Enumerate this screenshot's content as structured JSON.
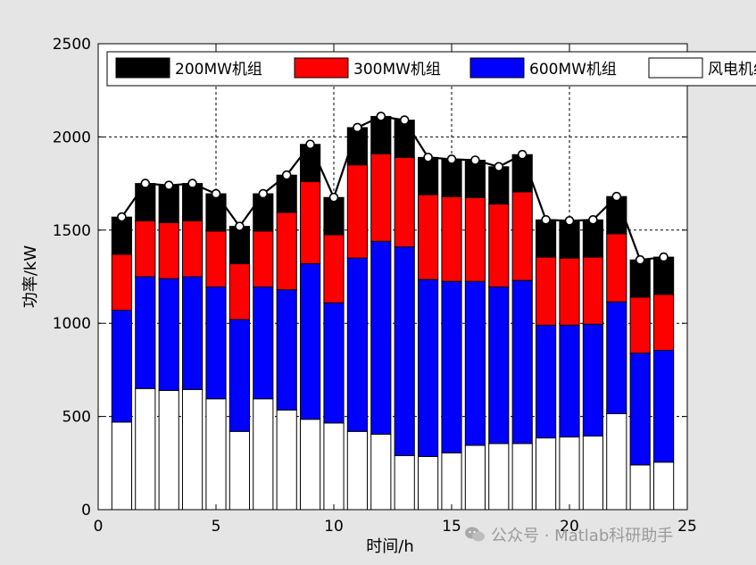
{
  "chart_data": {
    "type": "bar",
    "stacked": true,
    "xlabel": "时间/h",
    "ylabel": "功率/kW",
    "xlim": [
      0,
      25
    ],
    "ylim": [
      0,
      2500
    ],
    "xticks": [
      0,
      5,
      10,
      15,
      20,
      25
    ],
    "yticks": [
      0,
      500,
      1000,
      1500,
      2000,
      2500
    ],
    "grid": true,
    "legend_position": "top",
    "x": [
      1,
      2,
      3,
      4,
      5,
      6,
      7,
      8,
      9,
      10,
      11,
      12,
      13,
      14,
      15,
      16,
      17,
      18,
      19,
      20,
      21,
      22,
      23,
      24
    ],
    "series": [
      {
        "name": "风电机组",
        "color": "#ffffff",
        "values": [
          470,
          650,
          640,
          645,
          595,
          420,
          595,
          535,
          485,
          465,
          420,
          405,
          290,
          285,
          305,
          345,
          355,
          355,
          385,
          390,
          395,
          515,
          240,
          255
        ]
      },
      {
        "name": "600MW机组",
        "color": "#0000ff",
        "values": [
          600,
          600,
          600,
          605,
          600,
          600,
          600,
          645,
          835,
          645,
          930,
          1035,
          1120,
          950,
          920,
          880,
          840,
          875,
          605,
          600,
          600,
          600,
          600,
          600
        ]
      },
      {
        "name": "300MW机组",
        "color": "#ff0000",
        "values": [
          300,
          300,
          300,
          300,
          300,
          300,
          300,
          415,
          440,
          365,
          500,
          470,
          480,
          455,
          455,
          450,
          445,
          475,
          365,
          360,
          360,
          365,
          300,
          300
        ]
      },
      {
        "name": "200MW机组",
        "color": "#000000",
        "values": [
          200,
          200,
          200,
          200,
          200,
          200,
          200,
          200,
          200,
          200,
          200,
          200,
          200,
          200,
          200,
          200,
          200,
          200,
          200,
          200,
          200,
          200,
          200,
          200
        ]
      }
    ],
    "load_line": {
      "color": "#000000",
      "values": [
        1570,
        1750,
        1740,
        1750,
        1695,
        1520,
        1695,
        1795,
        1960,
        1675,
        2050,
        2110,
        2090,
        1890,
        1880,
        1875,
        1840,
        1905,
        1555,
        1550,
        1555,
        1680,
        1340,
        1355
      ]
    }
  },
  "watermark": {
    "text": "公众号 · Matlab科研助手",
    "icon": "wechat-icon"
  }
}
